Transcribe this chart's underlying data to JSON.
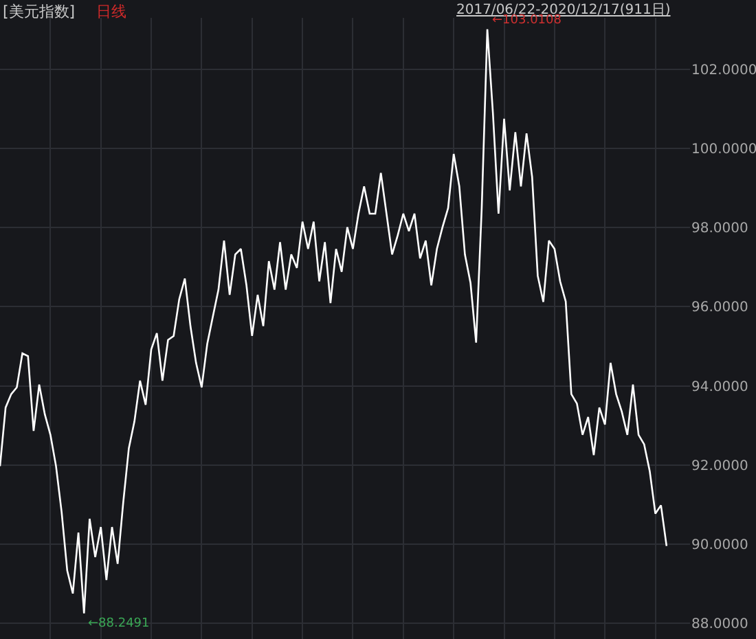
{
  "chart_data": {
    "type": "line",
    "title": "[美元指数]",
    "subtitle": "日线",
    "annotations": [
      "2017/06/22-2020/12/17(911日)",
      "←103.0108",
      "←88.2491"
    ],
    "categories": [
      null,
      null,
      null,
      null,
      null,
      null,
      null,
      null,
      null,
      null,
      null,
      null,
      null,
      null,
      null,
      null,
      null,
      null,
      null,
      null,
      null,
      null,
      null,
      null,
      null,
      null,
      null,
      null,
      null,
      null,
      null,
      null,
      null,
      null,
      null,
      null,
      null,
      null,
      null,
      null,
      null,
      null,
      null,
      null,
      null,
      null,
      null,
      null,
      null,
      null,
      null,
      null,
      null,
      null,
      null,
      null,
      null,
      null,
      null,
      null,
      null,
      null,
      null,
      null,
      null,
      null,
      null,
      null,
      null,
      null,
      null,
      null,
      null,
      null,
      null,
      null,
      null,
      null,
      null,
      null,
      null,
      null,
      null,
      null,
      null,
      null,
      null,
      null,
      null,
      null,
      null,
      null,
      null,
      null,
      null,
      null,
      null,
      null,
      null,
      null,
      null,
      null,
      null,
      null,
      null,
      null,
      null,
      null,
      null,
      null,
      null,
      null,
      null,
      null,
      null,
      null,
      null,
      null,
      null,
      null
    ],
    "series": [
      {
        "color": "#ffffff",
        "values": [
          91.97,
          93.45,
          93.79,
          93.96,
          94.82,
          94.75,
          92.86,
          94.03,
          93.28,
          92.76,
          91.97,
          90.81,
          89.33,
          88.75,
          90.29,
          88.2491,
          90.64,
          89.67,
          90.43,
          89.09,
          90.43,
          89.5,
          91.05,
          92.42,
          93.1,
          94.13,
          93.52,
          94.92,
          95.33,
          94.13,
          95.16,
          95.26,
          96.19,
          96.71,
          95.51,
          94.58,
          93.96,
          95.06,
          95.75,
          96.43,
          97.67,
          96.3,
          97.32,
          97.46,
          96.54,
          95.26,
          96.3,
          95.51,
          97.15,
          96.43,
          97.63,
          96.43,
          97.32,
          96.98,
          98.15,
          97.46,
          98.15,
          96.64,
          97.63,
          96.09,
          97.46,
          96.88,
          98.01,
          97.46,
          98.35,
          99.04,
          98.35,
          98.35,
          99.38,
          98.35,
          97.32,
          97.8,
          98.35,
          97.91,
          98.35,
          97.22,
          97.67,
          96.54,
          97.46,
          98.01,
          98.49,
          99.86,
          99.04,
          97.32,
          96.6,
          95.09,
          98.49,
          103.0108,
          100.89,
          98.35,
          100.75,
          98.94,
          100.41,
          99.04,
          100.38,
          99.28,
          96.78,
          96.12,
          97.67,
          97.46,
          96.64,
          96.13,
          93.79,
          93.55,
          92.76,
          93.21,
          92.25,
          93.45,
          93.02,
          94.58,
          93.79,
          93.35,
          92.76,
          94.03,
          92.76,
          92.52,
          91.84,
          90.77,
          90.98,
          89.95
        ]
      }
    ],
    "ylim": [
      87.6,
      103.3
    ],
    "yticks": [
      {
        "value": 88,
        "label": "88.0000"
      },
      {
        "value": 90,
        "label": "90.0000"
      },
      {
        "value": 92,
        "label": "92.0000"
      },
      {
        "value": 94,
        "label": "94.0000"
      },
      {
        "value": 96,
        "label": "96.0000"
      },
      {
        "value": 98,
        "label": "98.0000"
      },
      {
        "value": 100,
        "label": "100.0000"
      },
      {
        "value": 102,
        "label": "102.0000"
      }
    ],
    "grid": true,
    "tick_labels": "y",
    "marker": "none",
    "line_style": "solid"
  }
}
